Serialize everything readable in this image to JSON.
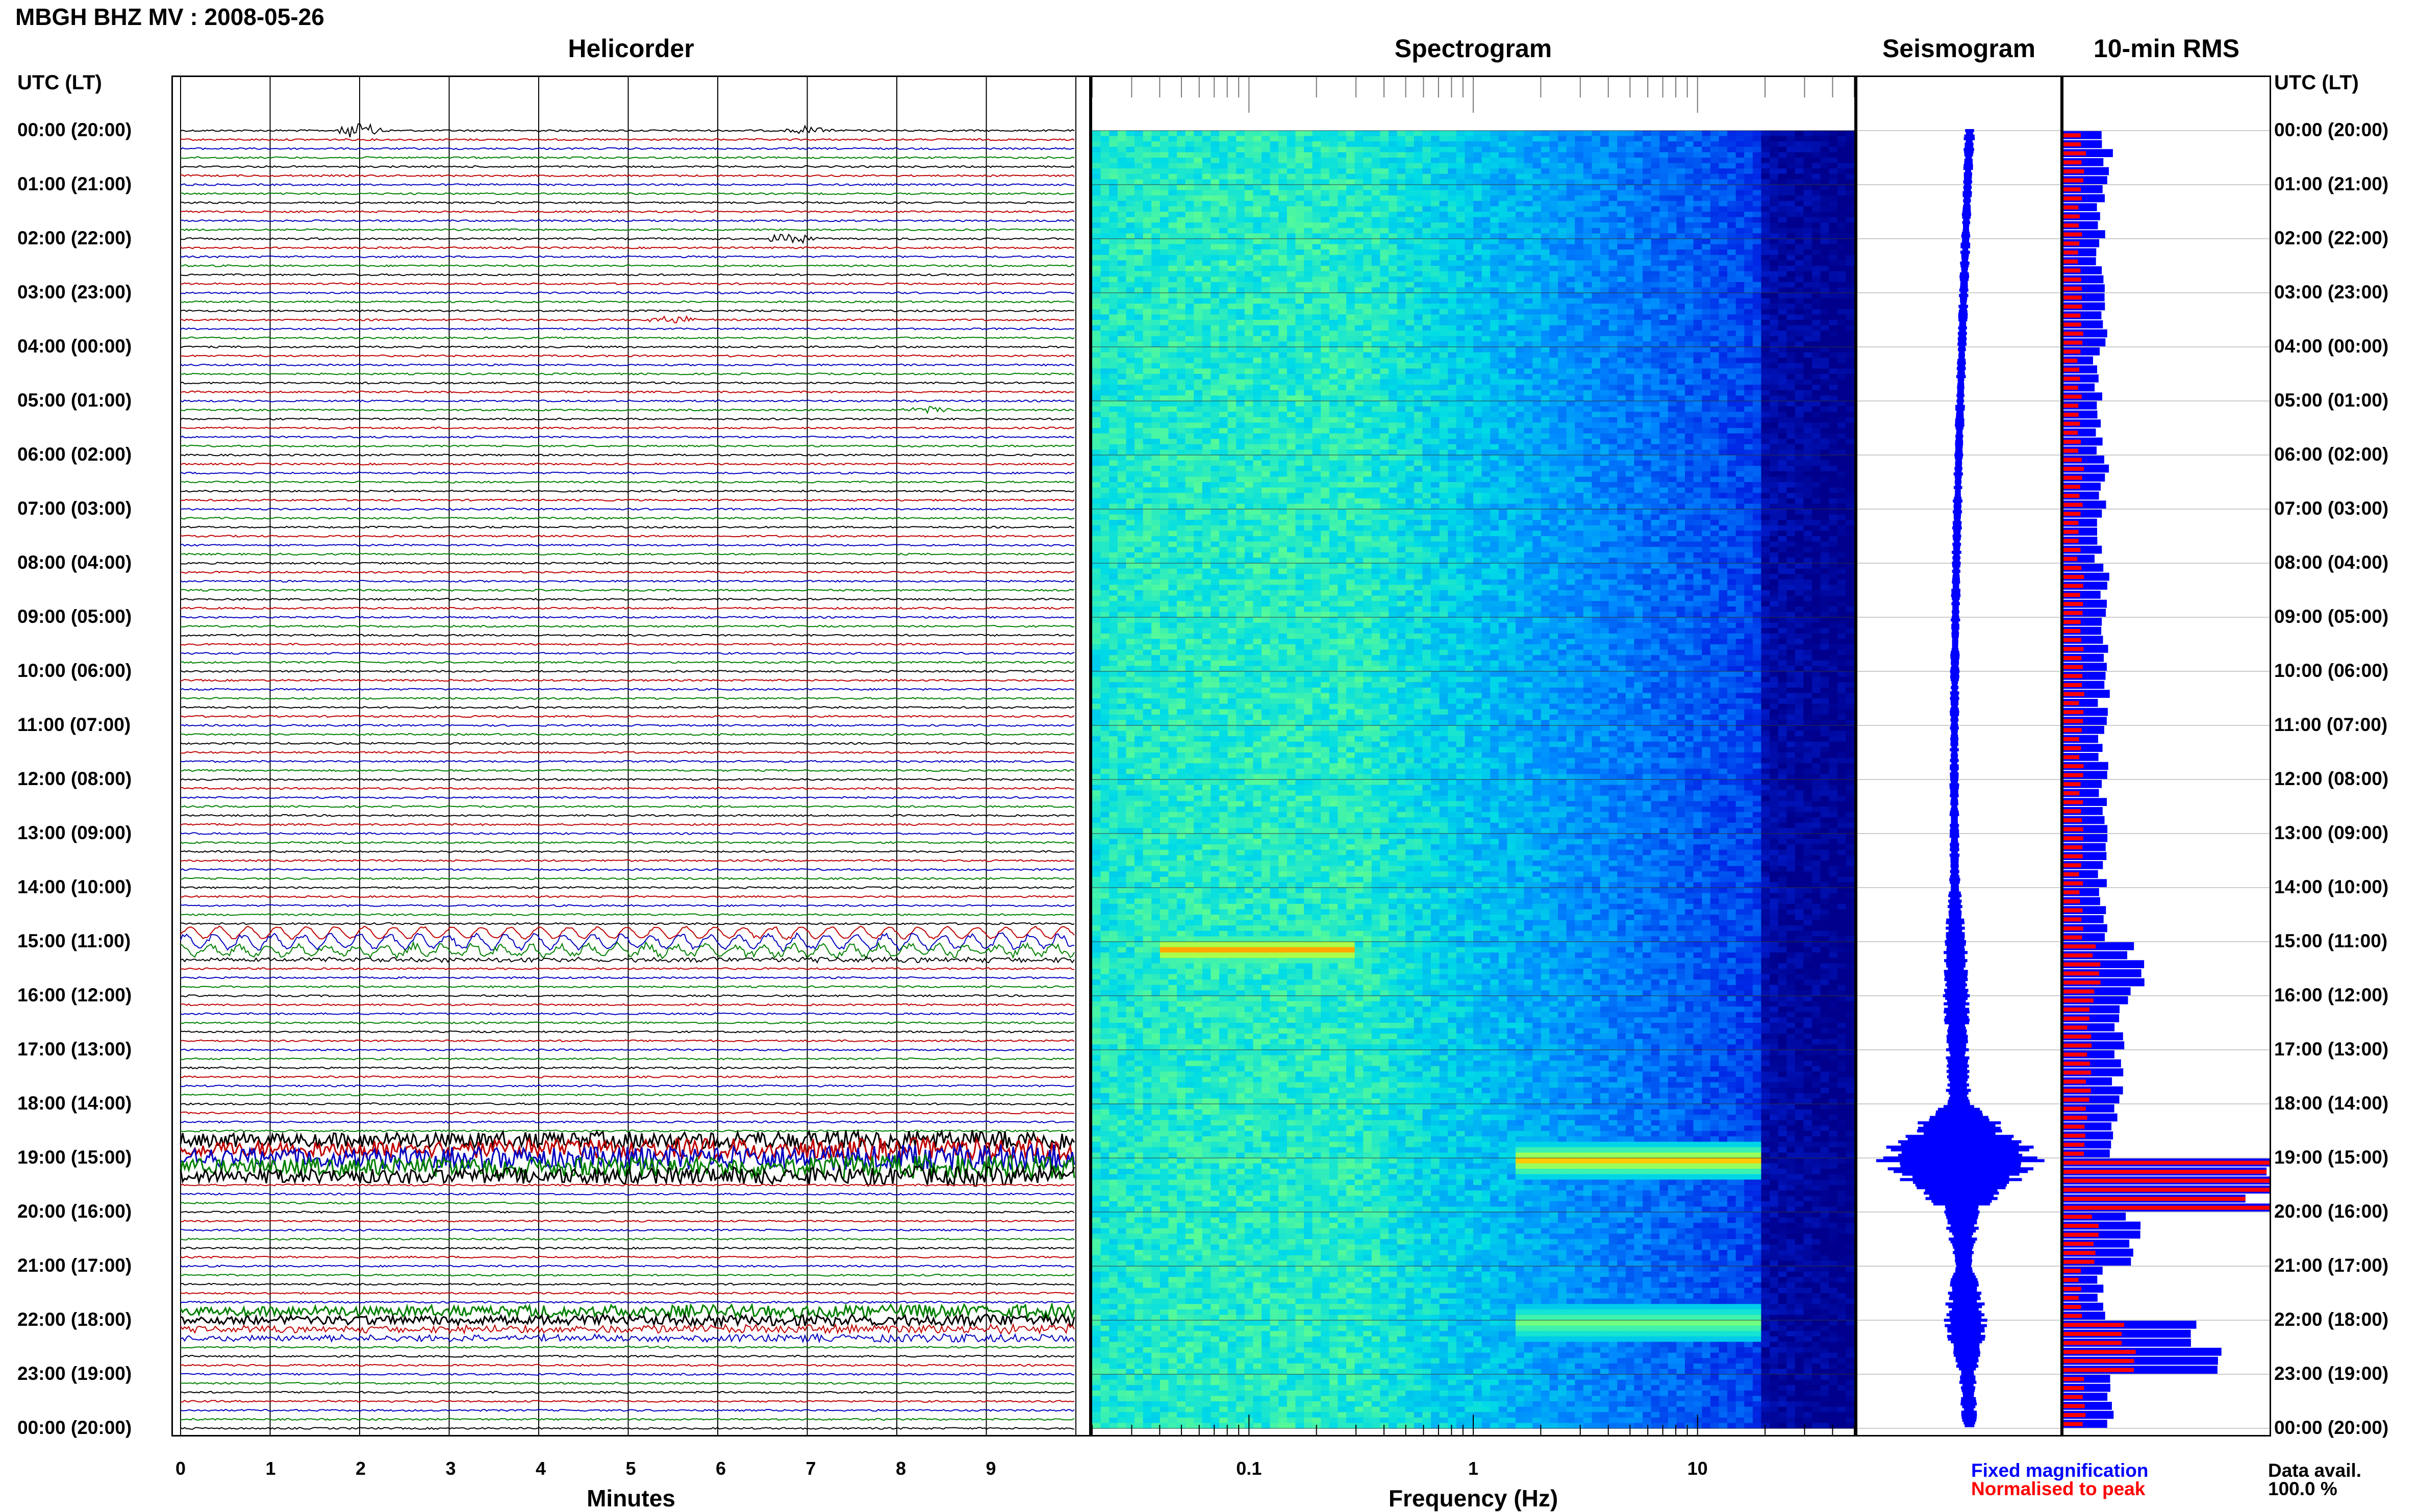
{
  "title": "MBGH BHZ MV : 2008-05-26",
  "panels": {
    "helicorder": "Helicorder",
    "spectrogram": "Spectrogram",
    "seismogram": "Seismogram",
    "rms": "10-min RMS"
  },
  "utc_header": "UTC (LT)",
  "time_labels": [
    "00:00 (20:00)",
    "01:00 (21:00)",
    "02:00 (22:00)",
    "03:00 (23:00)",
    "04:00 (00:00)",
    "05:00 (01:00)",
    "06:00 (02:00)",
    "07:00 (03:00)",
    "08:00 (04:00)",
    "09:00 (05:00)",
    "10:00 (06:00)",
    "11:00 (07:00)",
    "12:00 (08:00)",
    "13:00 (09:00)",
    "14:00 (10:00)",
    "15:00 (11:00)",
    "16:00 (12:00)",
    "17:00 (13:00)",
    "18:00 (14:00)",
    "19:00 (15:00)",
    "20:00 (16:00)",
    "21:00 (17:00)",
    "22:00 (18:00)",
    "23:00 (19:00)",
    "00:00 (20:00)"
  ],
  "legend": {
    "fixed": "Fixed magnification",
    "normalised": "Normalised to peak",
    "avail_label": "Data avail.",
    "avail_value": "100.0 %"
  },
  "colors": {
    "trace_cycle": [
      "#000000",
      "#c00000",
      "#0000c0",
      "#008000"
    ],
    "rms_fixed": "#0000ff",
    "rms_norm": "#ff0000",
    "spec_low": "#00008b",
    "spec_high": "#ffff00"
  },
  "chart_data": [
    {
      "type": "line",
      "name": "Helicorder",
      "xlabel": "Minutes",
      "xticks": [
        "0",
        "1",
        "2",
        "3",
        "4",
        "5",
        "6",
        "7",
        "8",
        "9"
      ],
      "xlim": [
        0,
        10
      ],
      "rows_per_hour": 6,
      "hours": 24,
      "events": [
        {
          "row": 0,
          "minute": 2.0,
          "strength": 1.6
        },
        {
          "row": 0,
          "minute": 7.0,
          "strength": 0.8
        },
        {
          "row": 12,
          "minute": 6.8,
          "strength": 1.2
        },
        {
          "row": 21,
          "minute": 5.5,
          "strength": 0.9
        },
        {
          "row": 31,
          "minute": 8.3,
          "strength": 0.7
        },
        {
          "row": 89,
          "minute": 6.6,
          "strength": 0.9
        },
        {
          "row": 131,
          "minute": 4.2,
          "strength": 0.8
        }
      ],
      "noisy_rows": [
        [
          90,
          0.9
        ],
        [
          91,
          1.3
        ],
        [
          92,
          0.9
        ],
        [
          112,
          3.6
        ],
        [
          113,
          4.2
        ],
        [
          114,
          5.0
        ],
        [
          115,
          4.4
        ],
        [
          116,
          3.6
        ],
        [
          131,
          2.4
        ],
        [
          132,
          2.2
        ],
        [
          133,
          1.6
        ],
        [
          134,
          1.4
        ]
      ],
      "microseism_rows": [
        [
          89,
          2.2
        ],
        [
          90,
          2.6
        ],
        [
          91,
          2.0
        ]
      ]
    },
    {
      "type": "heatmap",
      "name": "Spectrogram",
      "xlabel": "Frequency (Hz)",
      "xscale": "log",
      "xlim": [
        0.02,
        50
      ],
      "xticks": [
        "0.1",
        "1",
        "10"
      ],
      "ylim": [
        0,
        24
      ],
      "hot_spots": [
        {
          "hour": 15.1,
          "freq": [
            0.04,
            0.3
          ],
          "level": 1.0
        },
        {
          "hour": 19.0,
          "freq": [
            1.5,
            20
          ],
          "level": 0.95
        },
        {
          "hour": 22.0,
          "freq": [
            1.5,
            20
          ],
          "level": 0.6
        }
      ]
    },
    {
      "type": "line",
      "name": "Seismogram",
      "ylim": [
        0,
        24
      ],
      "envelope": [
        0.06,
        0.05,
        0.05,
        0.05,
        0.05,
        0.05,
        0.05,
        0.05,
        0.05,
        0.05,
        0.05,
        0.05,
        0.05,
        0.05,
        0.06,
        0.12,
        0.15,
        0.12,
        0.14,
        1.0,
        0.2,
        0.1,
        0.25,
        0.09,
        0.08
      ]
    },
    {
      "type": "bar",
      "name": "10-min RMS",
      "ylim": [
        0,
        24
      ],
      "hourly_fixed": [
        0.22,
        0.18,
        0.18,
        0.2,
        0.17,
        0.18,
        0.2,
        0.18,
        0.2,
        0.2,
        0.2,
        0.2,
        0.2,
        0.2,
        0.2,
        0.35,
        0.28,
        0.26,
        0.25,
        1.0,
        0.35,
        0.18,
        0.7,
        0.25,
        0.25
      ],
      "hourly_norm": [
        0.1,
        0.08,
        0.08,
        0.09,
        0.08,
        0.08,
        0.09,
        0.08,
        0.09,
        0.09,
        0.09,
        0.09,
        0.09,
        0.09,
        0.09,
        0.16,
        0.13,
        0.12,
        0.11,
        1.0,
        0.16,
        0.08,
        0.32,
        0.11,
        0.11
      ]
    }
  ]
}
